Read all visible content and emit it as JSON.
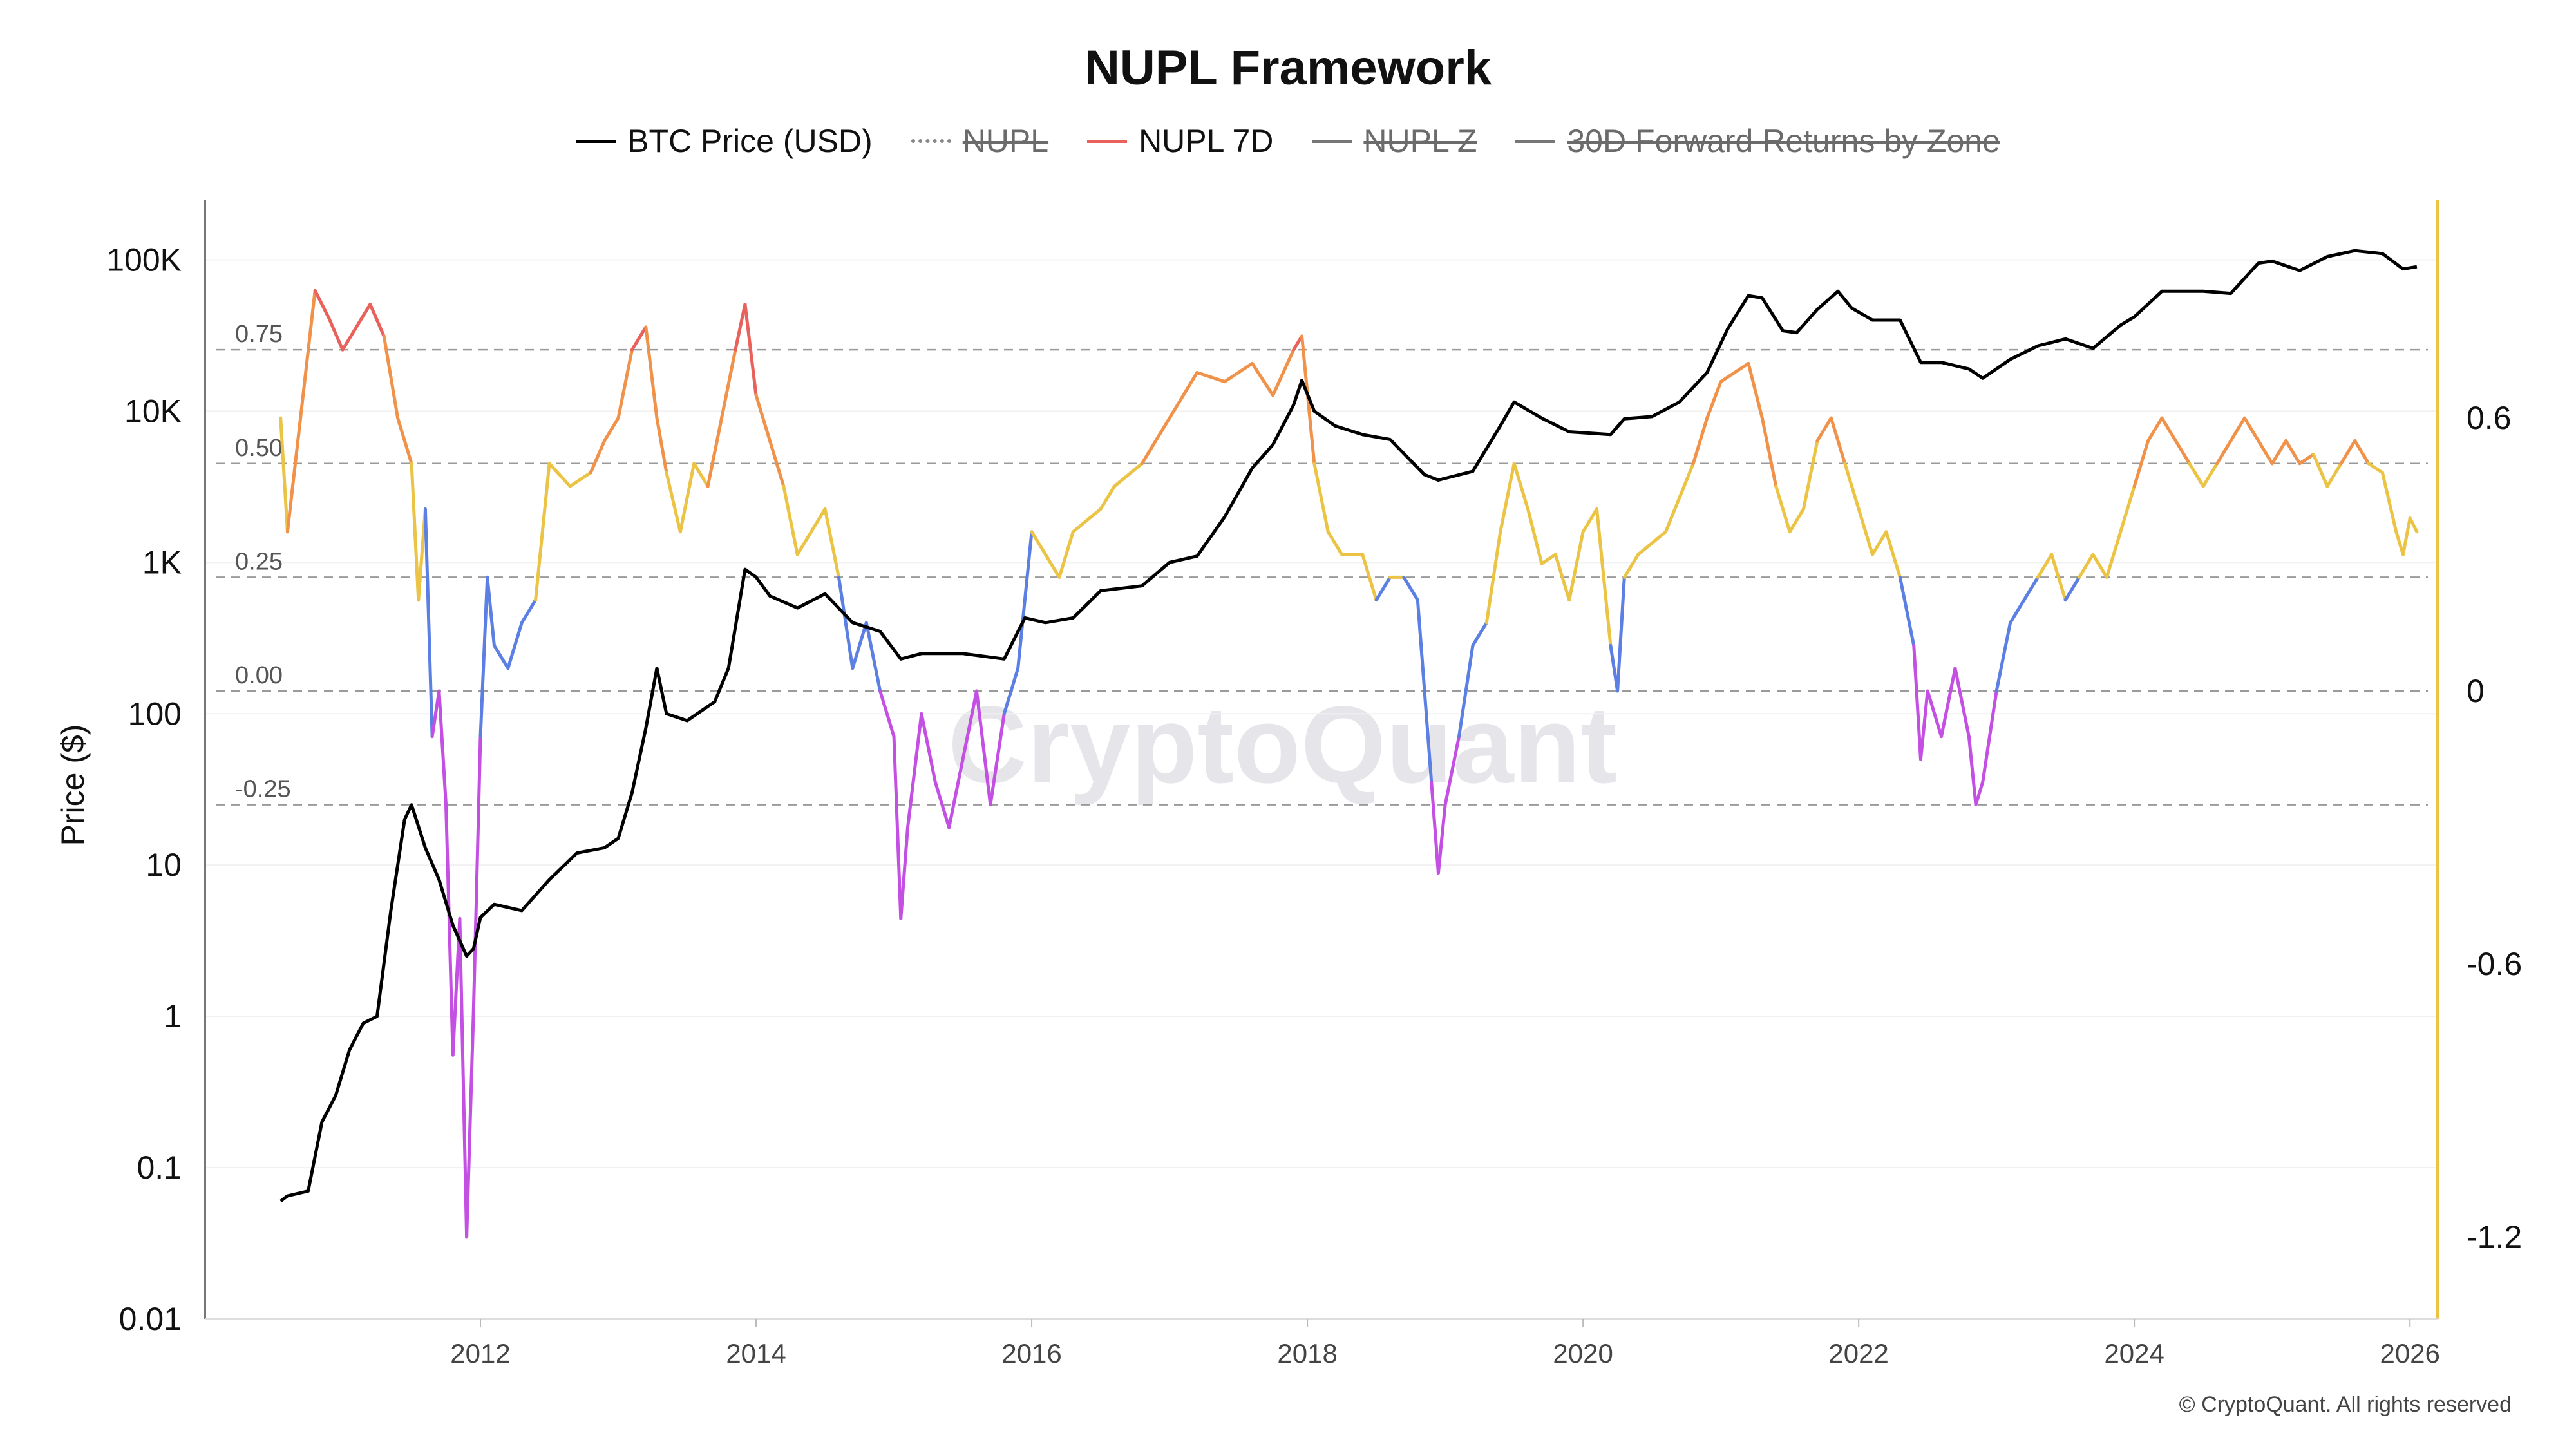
{
  "title": "NUPL Framework",
  "copyright": "© CryptoQuant. All rights reserved",
  "watermark": "CryptoQuant",
  "legend": [
    {
      "label": "BTC Price (USD)",
      "color": "#000000",
      "style": "solid",
      "hidden": false
    },
    {
      "label": "NUPL",
      "color": "#888888",
      "style": "dotted",
      "hidden": true
    },
    {
      "label": "NUPL 7D",
      "color": "#e8615a",
      "style": "solid",
      "hidden": false
    },
    {
      "label": "NUPL Z",
      "color": "#777777",
      "style": "solid",
      "hidden": true
    },
    {
      "label": "30D Forward Returns by Zone",
      "color": "#777777",
      "style": "solid",
      "hidden": true
    }
  ],
  "chart_data": {
    "type": "line",
    "title": "NUPL Framework",
    "x_ticks": [
      "2012",
      "2014",
      "2016",
      "2018",
      "2020",
      "2022",
      "2024",
      "2026"
    ],
    "xlim": [
      2010.0,
      2026.2
    ],
    "left_axis": {
      "label": "Price ($)",
      "scale": "log",
      "ticks": [
        "0.01",
        "0.1",
        "1",
        "10",
        "100",
        "1K",
        "10K",
        "100K"
      ],
      "ylim": [
        0.01,
        250000
      ]
    },
    "right_axis": {
      "ticks": [
        "-1.2",
        "-0.6",
        "0",
        "0.6"
      ],
      "ylim": [
        -1.38,
        1.08
      ]
    },
    "nupl_levels": [
      "0.75",
      "0.50",
      "0.25",
      "0.00",
      "-0.25"
    ],
    "zone_colors": {
      "euphoria": "#e8615a",
      "belief": "#f0924a",
      "optimism": "#ebc445",
      "hope": "#5b7fe3",
      "capitulation": "#c44fe3"
    },
    "grid": true,
    "series": [
      {
        "name": "BTC Price (USD)",
        "axis": "left",
        "color": "#000000",
        "x": [
          2010.55,
          2010.6,
          2010.75,
          2010.85,
          2010.95,
          2011.05,
          2011.15,
          2011.25,
          2011.35,
          2011.45,
          2011.5,
          2011.6,
          2011.7,
          2011.8,
          2011.9,
          2011.95,
          2012.0,
          2012.1,
          2012.3,
          2012.5,
          2012.7,
          2012.9,
          2013.0,
          2013.1,
          2013.2,
          2013.28,
          2013.35,
          2013.5,
          2013.7,
          2013.8,
          2013.92,
          2014.0,
          2014.1,
          2014.3,
          2014.5,
          2014.7,
          2014.9,
          2015.05,
          2015.2,
          2015.5,
          2015.8,
          2015.95,
          2016.1,
          2016.3,
          2016.5,
          2016.8,
          2017.0,
          2017.2,
          2017.4,
          2017.6,
          2017.75,
          2017.9,
          2017.96,
          2018.05,
          2018.2,
          2018.4,
          2018.6,
          2018.85,
          2018.95,
          2019.2,
          2019.4,
          2019.5,
          2019.7,
          2019.9,
          2020.2,
          2020.3,
          2020.5,
          2020.7,
          2020.9,
          2021.05,
          2021.2,
          2021.3,
          2021.45,
          2021.55,
          2021.7,
          2021.85,
          2021.95,
          2022.1,
          2022.3,
          2022.45,
          2022.6,
          2022.8,
          2022.9,
          2023.1,
          2023.3,
          2023.5,
          2023.7,
          2023.9,
          2024.0,
          2024.2,
          2024.5,
          2024.7,
          2024.9,
          2025.0,
          2025.2,
          2025.4,
          2025.6,
          2025.8,
          2025.95,
          2026.05
        ],
        "y": [
          0.06,
          0.065,
          0.07,
          0.2,
          0.3,
          0.6,
          0.9,
          1.0,
          5.0,
          20.0,
          25.0,
          13.0,
          8.0,
          4.0,
          2.5,
          2.8,
          4.5,
          5.5,
          5.0,
          8.0,
          12.0,
          13.0,
          15.0,
          30.0,
          80.0,
          200.0,
          100.0,
          90.0,
          120.0,
          200.0,
          900.0,
          800.0,
          600.0,
          500.0,
          620.0,
          400.0,
          350.0,
          230.0,
          250.0,
          250.0,
          230.0,
          430.0,
          400.0,
          430.0,
          650.0,
          700.0,
          1000.0,
          1100.0,
          2000.0,
          4200.0,
          6000.0,
          11000.0,
          16000.0,
          10000.0,
          8000.0,
          7000.0,
          6500.0,
          3800.0,
          3500.0,
          4000.0,
          8000.0,
          11500.0,
          9000.0,
          7300.0,
          7000.0,
          8900.0,
          9200.0,
          11500.0,
          18000.0,
          35000.0,
          58000.0,
          56000.0,
          34000.0,
          33000.0,
          47000.0,
          62000.0,
          48000.0,
          40000.0,
          40000.0,
          21000.0,
          21000.0,
          19000.0,
          16500.0,
          22000.0,
          27000.0,
          30000.0,
          26000.0,
          37000.0,
          42000.0,
          62000.0,
          62000.0,
          60000.0,
          95000.0,
          98000.0,
          85000.0,
          105000.0,
          115000.0,
          110000.0,
          87000.0,
          90000.0
        ]
      },
      {
        "name": "NUPL 7D",
        "axis": "right",
        "zone_colored": true,
        "x": [
          2010.55,
          2010.6,
          2010.8,
          2010.9,
          2011.0,
          2011.2,
          2011.3,
          2011.4,
          2011.5,
          2011.55,
          2011.6,
          2011.65,
          2011.7,
          2011.75,
          2011.8,
          2011.85,
          2011.9,
          2011.95,
          2012.0,
          2012.05,
          2012.1,
          2012.2,
          2012.3,
          2012.4,
          2012.5,
          2012.65,
          2012.8,
          2012.9,
          2013.0,
          2013.1,
          2013.2,
          2013.28,
          2013.35,
          2013.45,
          2013.55,
          2013.65,
          2013.75,
          2013.85,
          2013.92,
          2014.0,
          2014.1,
          2014.2,
          2014.3,
          2014.4,
          2014.5,
          2014.6,
          2014.7,
          2014.8,
          2014.9,
          2015.0,
          2015.05,
          2015.1,
          2015.2,
          2015.3,
          2015.4,
          2015.5,
          2015.6,
          2015.7,
          2015.8,
          2015.9,
          2016.0,
          2016.1,
          2016.2,
          2016.3,
          2016.5,
          2016.6,
          2016.8,
          2017.0,
          2017.2,
          2017.4,
          2017.6,
          2017.75,
          2017.9,
          2017.96,
          2018.05,
          2018.15,
          2018.25,
          2018.4,
          2018.5,
          2018.6,
          2018.7,
          2018.8,
          2018.9,
          2018.95,
          2019.0,
          2019.1,
          2019.2,
          2019.3,
          2019.4,
          2019.5,
          2019.6,
          2019.7,
          2019.8,
          2019.9,
          2020.0,
          2020.1,
          2020.2,
          2020.25,
          2020.3,
          2020.4,
          2020.6,
          2020.8,
          2020.9,
          2021.0,
          2021.1,
          2021.2,
          2021.3,
          2021.4,
          2021.5,
          2021.6,
          2021.7,
          2021.8,
          2021.9,
          2022.0,
          2022.1,
          2022.2,
          2022.3,
          2022.4,
          2022.45,
          2022.5,
          2022.6,
          2022.7,
          2022.8,
          2022.85,
          2022.9,
          2023.0,
          2023.1,
          2023.2,
          2023.3,
          2023.4,
          2023.5,
          2023.6,
          2023.7,
          2023.8,
          2023.9,
          2024.0,
          2024.1,
          2024.2,
          2024.3,
          2024.4,
          2024.5,
          2024.6,
          2024.7,
          2024.8,
          2024.9,
          2025.0,
          2025.1,
          2025.2,
          2025.3,
          2025.4,
          2025.5,
          2025.6,
          2025.7,
          2025.8,
          2025.9,
          2025.95,
          2026.0,
          2026.05
        ],
        "y": [
          0.6,
          0.35,
          0.88,
          0.82,
          0.75,
          0.85,
          0.78,
          0.6,
          0.5,
          0.2,
          0.4,
          -0.1,
          0.0,
          -0.25,
          -0.8,
          -0.5,
          -1.2,
          -0.7,
          -0.1,
          0.25,
          0.1,
          0.05,
          0.15,
          0.2,
          0.5,
          0.45,
          0.48,
          0.55,
          0.6,
          0.75,
          0.8,
          0.6,
          0.48,
          0.35,
          0.5,
          0.45,
          0.6,
          0.75,
          0.85,
          0.65,
          0.55,
          0.45,
          0.3,
          0.35,
          0.4,
          0.25,
          0.05,
          0.15,
          0.0,
          -0.1,
          -0.5,
          -0.3,
          -0.05,
          -0.2,
          -0.3,
          -0.15,
          0.0,
          -0.25,
          -0.05,
          0.05,
          0.35,
          0.3,
          0.25,
          0.35,
          0.4,
          0.45,
          0.5,
          0.6,
          0.7,
          0.68,
          0.72,
          0.65,
          0.75,
          0.78,
          0.5,
          0.35,
          0.3,
          0.3,
          0.2,
          0.25,
          0.25,
          0.2,
          -0.2,
          -0.4,
          -0.25,
          -0.1,
          0.1,
          0.15,
          0.35,
          0.5,
          0.4,
          0.28,
          0.3,
          0.2,
          0.35,
          0.4,
          0.1,
          0.0,
          0.25,
          0.3,
          0.35,
          0.5,
          0.6,
          0.68,
          0.7,
          0.72,
          0.6,
          0.45,
          0.35,
          0.4,
          0.55,
          0.6,
          0.5,
          0.4,
          0.3,
          0.35,
          0.25,
          0.1,
          -0.15,
          0.0,
          -0.1,
          0.05,
          -0.1,
          -0.25,
          -0.2,
          0.0,
          0.15,
          0.2,
          0.25,
          0.3,
          0.2,
          0.25,
          0.3,
          0.25,
          0.35,
          0.45,
          0.55,
          0.6,
          0.55,
          0.5,
          0.45,
          0.5,
          0.55,
          0.6,
          0.55,
          0.5,
          0.55,
          0.5,
          0.52,
          0.45,
          0.5,
          0.55,
          0.5,
          0.48,
          0.35,
          0.3,
          0.38,
          0.35
        ]
      }
    ]
  }
}
